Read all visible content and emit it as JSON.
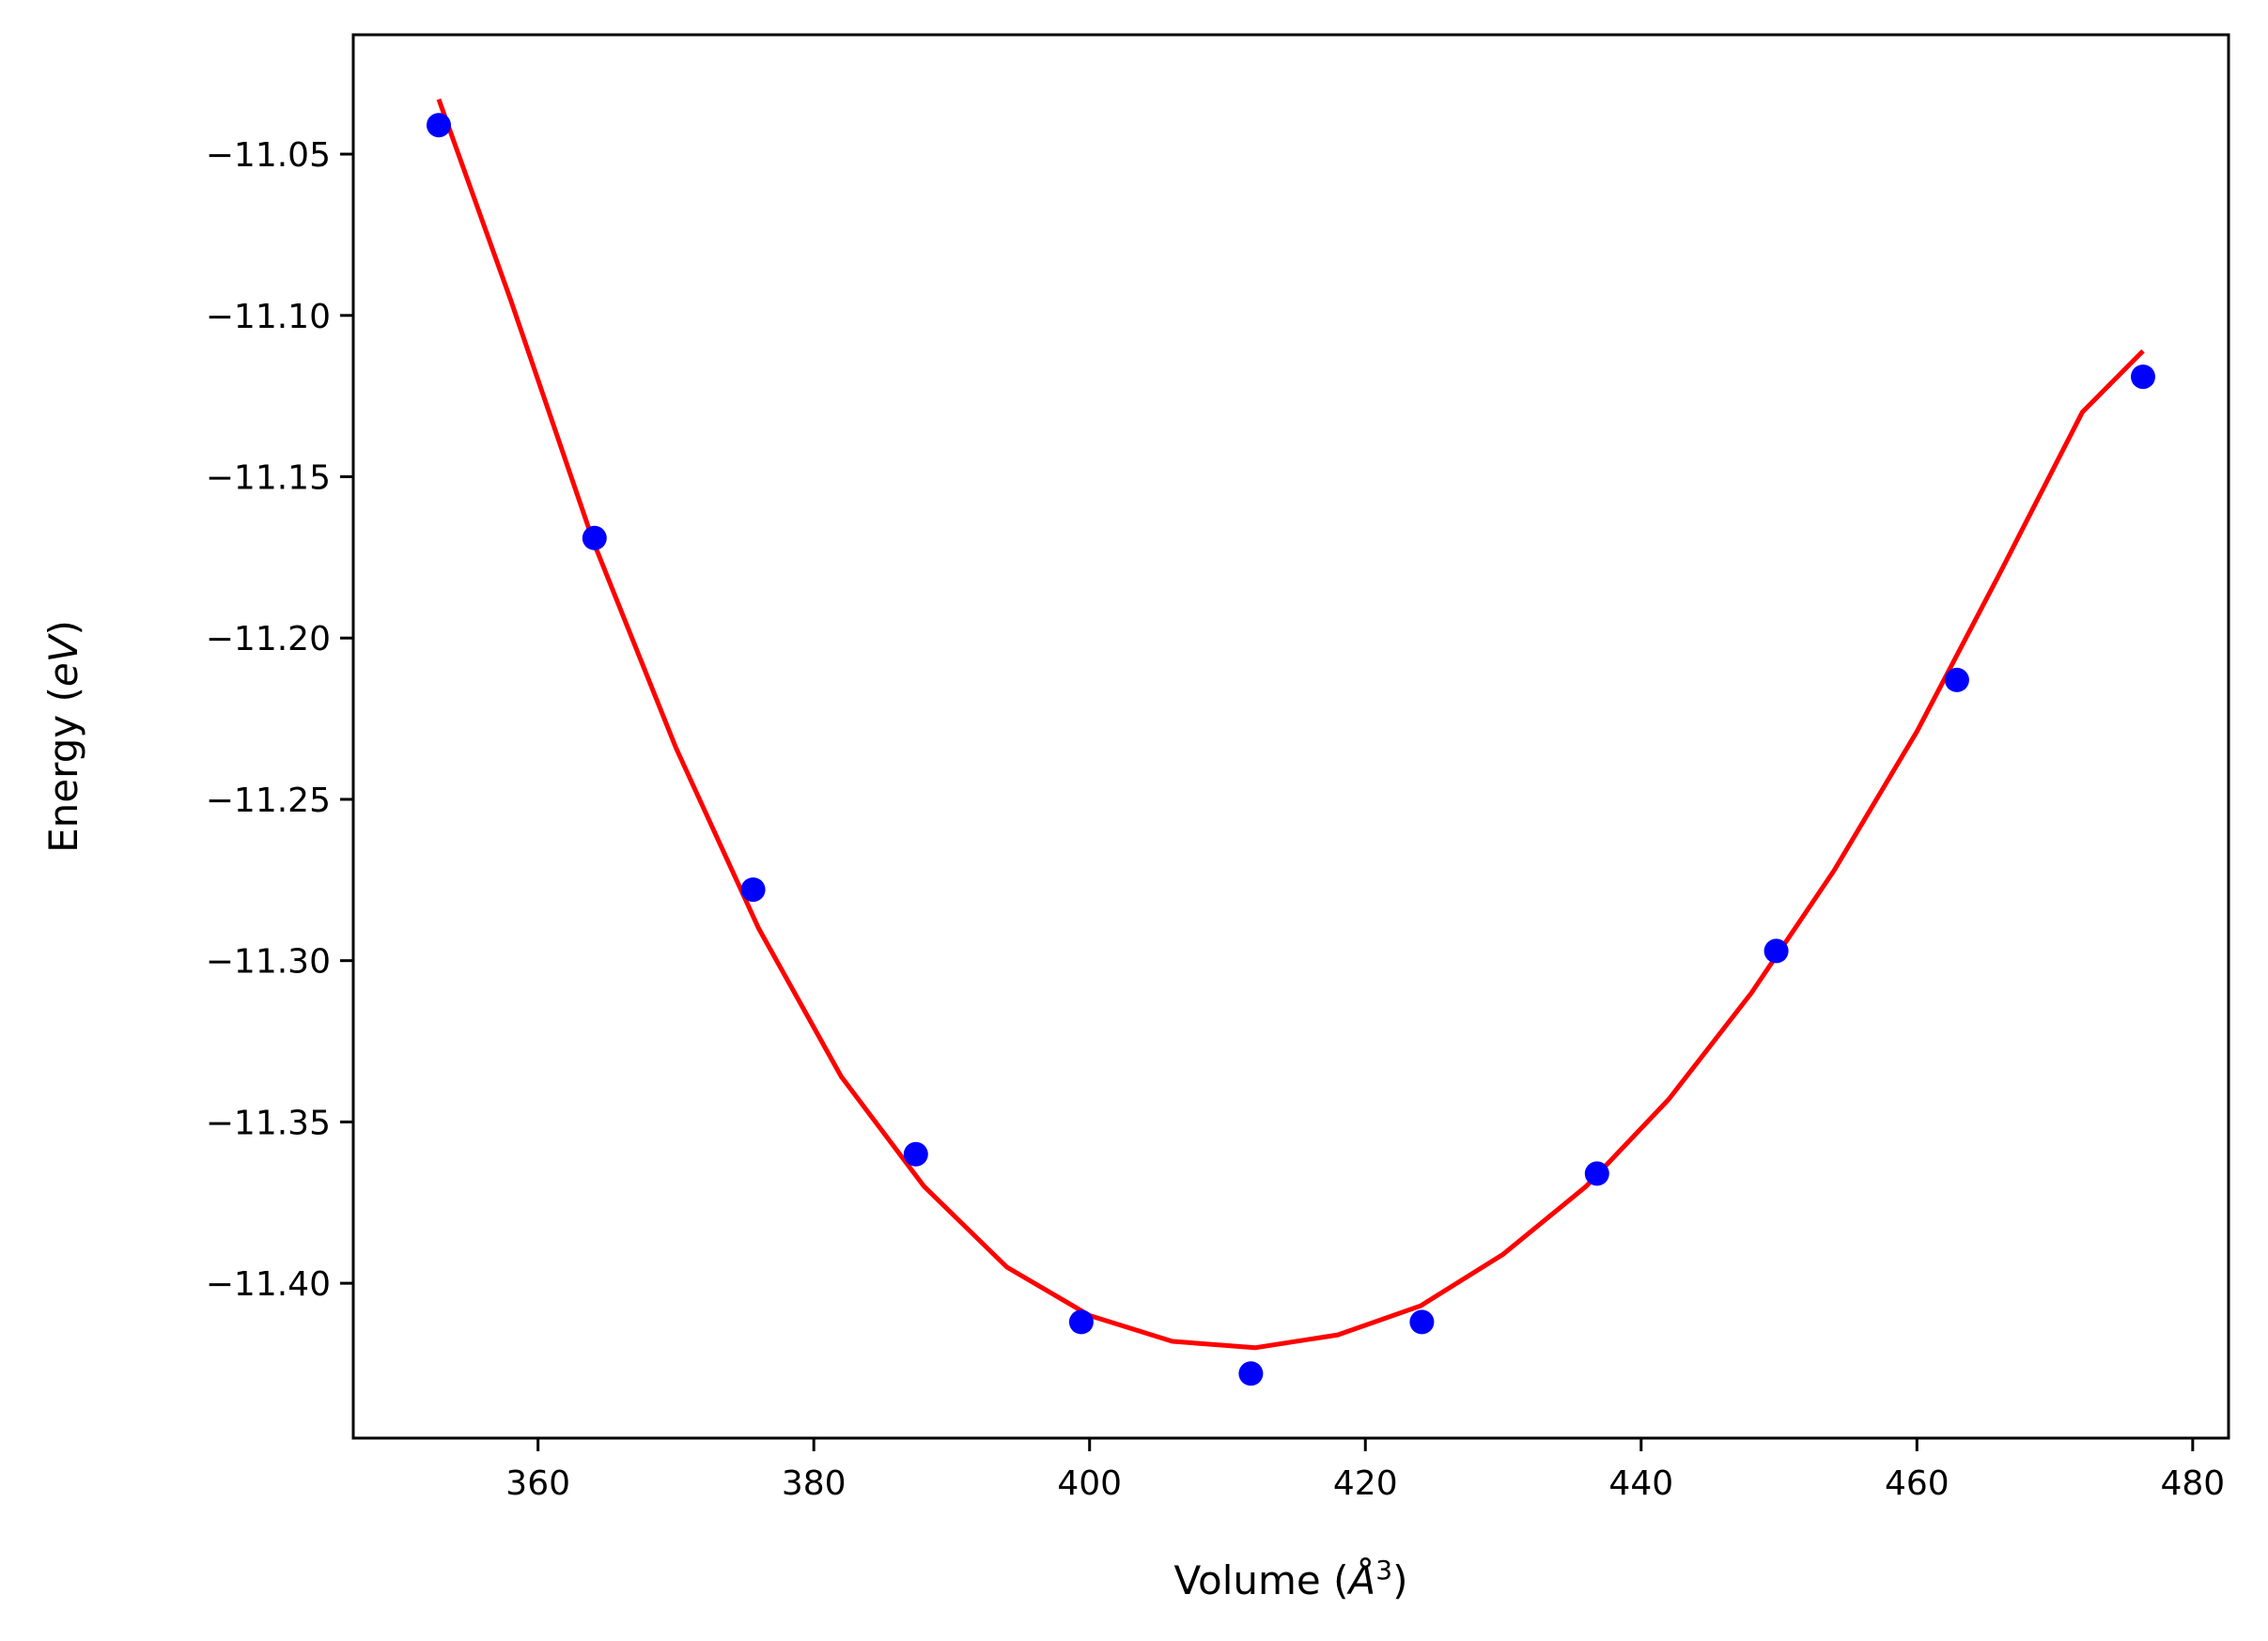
{
  "chart_data": {
    "type": "scatter",
    "title": "",
    "xlabel": {
      "pre": "Volume (",
      "sym": "Å",
      "sup": "3",
      "post": ")"
    },
    "ylabel": {
      "pre": "Energy (",
      "sym": "eV",
      "post": ")"
    },
    "xlim": [
      346.6,
      482.6
    ],
    "ylim": [
      -11.448,
      -11.013
    ],
    "xticks": [
      360,
      380,
      400,
      420,
      440,
      460,
      480
    ],
    "xtick_labels": [
      "360",
      "380",
      "400",
      "420",
      "440",
      "460",
      "480"
    ],
    "yticks": [
      -11.05,
      -11.1,
      -11.15,
      -11.2,
      -11.25,
      -11.3,
      -11.35,
      -11.4
    ],
    "ytick_labels": [
      "−11.05",
      "−11.10",
      "−11.15",
      "−11.20",
      "−11.25",
      "−11.30",
      "−11.35",
      "−11.40"
    ],
    "grid": false,
    "series": [
      {
        "kind": "points",
        "color": "#0000ff",
        "x": [
          352.8,
          364.1,
          375.6,
          387.4,
          399.4,
          411.7,
          424.1,
          436.8,
          449.8,
          462.9,
          476.4
        ],
        "y": [
          -11.041,
          -11.169,
          -11.278,
          -11.36,
          -11.412,
          -11.428,
          -11.412,
          -11.366,
          -11.297,
          -11.213,
          -11.119
        ]
      },
      {
        "kind": "fit-curve",
        "color": "#ff0000",
        "x": [
          352.8,
          358,
          364,
          370,
          376,
          382,
          388,
          394,
          400,
          406,
          412,
          418,
          424,
          430,
          436,
          442,
          448,
          454,
          460,
          466,
          472,
          476.4
        ],
        "y": [
          -11.033,
          -11.095,
          -11.17,
          -11.234,
          -11.29,
          -11.336,
          -11.37,
          -11.395,
          -11.41,
          -11.418,
          -11.42,
          -11.416,
          -11.407,
          -11.391,
          -11.37,
          -11.343,
          -11.31,
          -11.272,
          -11.229,
          -11.18,
          -11.13,
          -11.111
        ]
      }
    ]
  }
}
